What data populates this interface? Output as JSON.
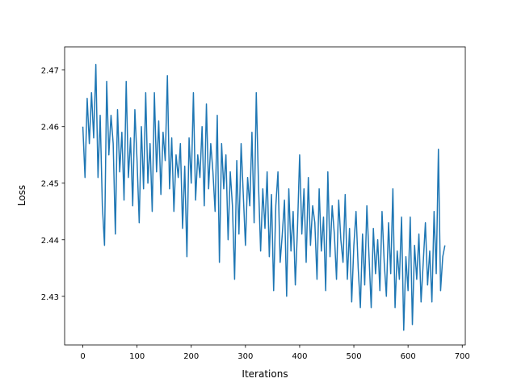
{
  "chart_data": {
    "type": "line",
    "x_label": "Iterations",
    "y_label": "Loss",
    "x": [
      0,
      4,
      8,
      12,
      16,
      20,
      24,
      28,
      32,
      36,
      40,
      44,
      48,
      52,
      56,
      60,
      64,
      68,
      72,
      76,
      80,
      84,
      88,
      92,
      96,
      100,
      104,
      108,
      112,
      116,
      120,
      124,
      128,
      132,
      136,
      140,
      144,
      148,
      152,
      156,
      160,
      164,
      168,
      172,
      176,
      180,
      184,
      188,
      192,
      196,
      200,
      204,
      208,
      212,
      216,
      220,
      224,
      228,
      232,
      236,
      240,
      244,
      248,
      252,
      256,
      260,
      264,
      268,
      272,
      276,
      280,
      284,
      288,
      292,
      296,
      300,
      304,
      308,
      312,
      316,
      320,
      324,
      328,
      332,
      336,
      340,
      344,
      348,
      352,
      356,
      360,
      364,
      368,
      372,
      376,
      380,
      384,
      388,
      392,
      396,
      400,
      404,
      408,
      412,
      416,
      420,
      424,
      428,
      432,
      436,
      440,
      444,
      448,
      452,
      456,
      460,
      464,
      468,
      472,
      476,
      480,
      484,
      488,
      492,
      496,
      500,
      504,
      508,
      512,
      516,
      520,
      524,
      528,
      532,
      536,
      540,
      544,
      548,
      552,
      556,
      560,
      564,
      568,
      572,
      576,
      580,
      584,
      588,
      592,
      596,
      600,
      604,
      608,
      612,
      616,
      620,
      624,
      628,
      632,
      636,
      640,
      644,
      648,
      652,
      656,
      660,
      664,
      668
    ],
    "series": [
      {
        "color": "#1f77b4",
        "values": [
          2.46,
          2.451,
          2.465,
          2.457,
          2.466,
          2.458,
          2.471,
          2.451,
          2.462,
          2.446,
          2.439,
          2.468,
          2.455,
          2.462,
          2.457,
          2.441,
          2.463,
          2.452,
          2.459,
          2.447,
          2.468,
          2.451,
          2.458,
          2.446,
          2.463,
          2.454,
          2.443,
          2.46,
          2.449,
          2.466,
          2.45,
          2.457,
          2.445,
          2.466,
          2.452,
          2.461,
          2.448,
          2.459,
          2.454,
          2.469,
          2.449,
          2.458,
          2.445,
          2.455,
          2.451,
          2.457,
          2.442,
          2.453,
          2.437,
          2.458,
          2.45,
          2.466,
          2.447,
          2.455,
          2.451,
          2.46,
          2.446,
          2.464,
          2.449,
          2.457,
          2.452,
          2.445,
          2.462,
          2.436,
          2.457,
          2.449,
          2.455,
          2.44,
          2.452,
          2.446,
          2.433,
          2.454,
          2.441,
          2.457,
          2.448,
          2.439,
          2.451,
          2.446,
          2.459,
          2.443,
          2.466,
          2.45,
          2.438,
          2.449,
          2.442,
          2.452,
          2.437,
          2.448,
          2.431,
          2.446,
          2.452,
          2.436,
          2.441,
          2.447,
          2.43,
          2.449,
          2.438,
          2.445,
          2.432,
          2.442,
          2.455,
          2.441,
          2.449,
          2.436,
          2.451,
          2.439,
          2.446,
          2.443,
          2.433,
          2.449,
          2.438,
          2.444,
          2.431,
          2.452,
          2.437,
          2.446,
          2.441,
          2.433,
          2.447,
          2.44,
          2.436,
          2.448,
          2.433,
          2.442,
          2.429,
          2.439,
          2.445,
          2.435,
          2.428,
          2.441,
          2.432,
          2.446,
          2.437,
          2.428,
          2.442,
          2.434,
          2.44,
          2.431,
          2.445,
          2.436,
          2.43,
          2.443,
          2.434,
          2.449,
          2.428,
          2.438,
          2.433,
          2.444,
          2.424,
          2.437,
          2.431,
          2.444,
          2.425,
          2.439,
          2.433,
          2.441,
          2.429,
          2.436,
          2.443,
          2.432,
          2.438,
          2.429,
          2.445,
          2.434,
          2.456,
          2.431,
          2.437,
          2.439
        ]
      }
    ],
    "xlim": [
      -33.6,
      705.6
    ],
    "ylim": [
      2.4214,
      2.4741
    ],
    "xticks": [
      0,
      100,
      200,
      300,
      400,
      500,
      600,
      700
    ],
    "yticks": [
      2.43,
      2.44,
      2.45,
      2.46,
      2.47
    ]
  }
}
